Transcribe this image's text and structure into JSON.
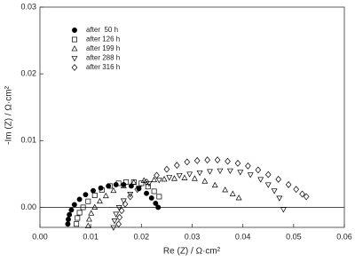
{
  "chart_data": {
    "type": "scatter",
    "x_label": "Re (Z) / Ω·cm²",
    "y_label": "-Im (Z) / Ω·cm²",
    "xlim": [
      0,
      0.06
    ],
    "ylim": [
      -0.003,
      0.03
    ],
    "xticks": [
      {
        "value": 0,
        "label": "0.00"
      },
      {
        "value": 0.01,
        "label": "0.01"
      },
      {
        "value": 0.02,
        "label": "0.02"
      },
      {
        "value": 0.03,
        "label": "0.03"
      },
      {
        "value": 0.04,
        "label": "0.04"
      },
      {
        "value": 0.05,
        "label": "0.05"
      },
      {
        "value": 0.06,
        "label": "0.06"
      }
    ],
    "yticks": [
      {
        "value": 0,
        "label": "0.00"
      },
      {
        "value": 0.01,
        "label": "0.01"
      },
      {
        "value": 0.02,
        "label": "0.02"
      },
      {
        "value": 0.03,
        "label": "0.03"
      }
    ],
    "zero_line": true,
    "legend_position": "upper-left",
    "series": [
      {
        "name": "after  50 h",
        "color": "#000000",
        "marker": "circle-filled",
        "x": [
          0.0055,
          0.0056,
          0.0058,
          0.0062,
          0.0068,
          0.0078,
          0.009,
          0.0105,
          0.012,
          0.0135,
          0.015,
          0.0165,
          0.018,
          0.0195,
          0.021,
          0.022,
          0.0228,
          0.0233
        ],
        "values": [
          -0.0025,
          -0.0018,
          -0.0011,
          -0.0004,
          0.0004,
          0.0012,
          0.0019,
          0.0025,
          0.0029,
          0.0032,
          0.0034,
          0.0034,
          0.0032,
          0.0028,
          0.0021,
          0.0014,
          0.0006,
          0.0
        ]
      },
      {
        "name": "after 126 h",
        "color": "#000000",
        "marker": "square",
        "x": [
          0.0072,
          0.0074,
          0.0078,
          0.0085,
          0.0095,
          0.0108,
          0.0122,
          0.0138,
          0.0155,
          0.017,
          0.0185,
          0.02,
          0.0213,
          0.0225,
          0.0235
        ],
        "values": [
          -0.0025,
          -0.0016,
          -0.0008,
          0.0,
          0.0009,
          0.0018,
          0.0026,
          0.0032,
          0.0036,
          0.0038,
          0.0038,
          0.0036,
          0.0031,
          0.0024,
          0.0016
        ]
      },
      {
        "name": "after 199 h",
        "color": "#000000",
        "marker": "triangle-up",
        "x": [
          0.0095,
          0.0097,
          0.0101,
          0.0108,
          0.0118,
          0.013,
          0.0145,
          0.0165,
          0.0185,
          0.0205,
          0.0225,
          0.0245,
          0.0265,
          0.0285,
          0.0305,
          0.0325,
          0.0345,
          0.0365,
          0.038,
          0.0392
        ],
        "values": [
          -0.0028,
          -0.0018,
          -0.0009,
          0.0,
          0.0009,
          0.0017,
          0.0025,
          0.0032,
          0.0037,
          0.004,
          0.0041,
          0.0042,
          0.0043,
          0.0044,
          0.0043,
          0.0039,
          0.0033,
          0.0026,
          0.002,
          0.0014
        ]
      },
      {
        "name": "after 288 h",
        "color": "#000000",
        "marker": "triangle-down",
        "x": [
          0.0145,
          0.0147,
          0.015,
          0.0156,
          0.0165,
          0.0178,
          0.0195,
          0.0215,
          0.0235,
          0.0255,
          0.0275,
          0.0295,
          0.0315,
          0.0335,
          0.0355,
          0.0375,
          0.0395,
          0.0415,
          0.0435,
          0.045,
          0.0462,
          0.0472,
          0.048
        ],
        "values": [
          -0.003,
          -0.002,
          -0.001,
          0.0,
          0.001,
          0.002,
          0.0029,
          0.0036,
          0.0041,
          0.0045,
          0.0048,
          0.005,
          0.0052,
          0.0054,
          0.0055,
          0.0055,
          0.0053,
          0.0049,
          0.0042,
          0.0034,
          0.0025,
          0.0014,
          -0.0003
        ]
      },
      {
        "name": "after 316 h",
        "color": "#000000",
        "marker": "diamond",
        "x": [
          0.0155,
          0.0157,
          0.0161,
          0.0168,
          0.0178,
          0.0192,
          0.021,
          0.023,
          0.025,
          0.027,
          0.029,
          0.031,
          0.033,
          0.035,
          0.037,
          0.039,
          0.041,
          0.043,
          0.045,
          0.047,
          0.049,
          0.0505,
          0.0517,
          0.0525
        ],
        "values": [
          -0.0025,
          -0.0015,
          -0.0005,
          0.0005,
          0.0016,
          0.0027,
          0.0038,
          0.0048,
          0.0057,
          0.0063,
          0.0068,
          0.007,
          0.0071,
          0.0071,
          0.0069,
          0.0066,
          0.0062,
          0.0056,
          0.0049,
          0.0042,
          0.0034,
          0.0027,
          0.002,
          0.0016
        ]
      }
    ]
  }
}
